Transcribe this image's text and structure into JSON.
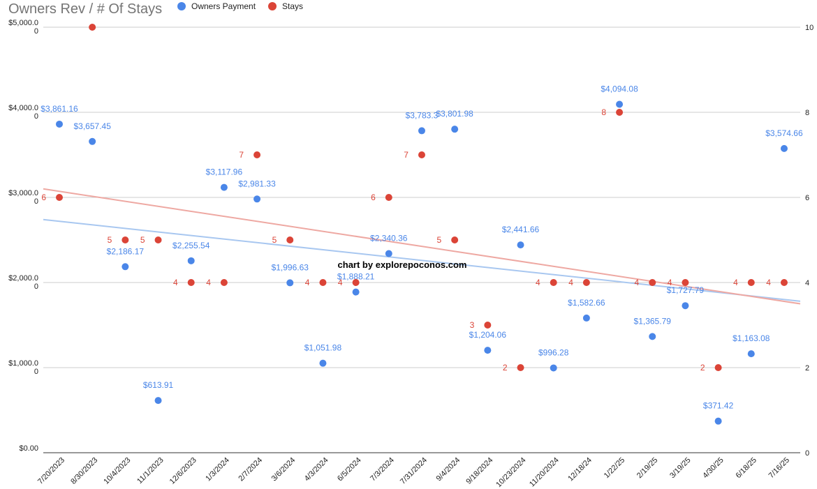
{
  "chart_data": {
    "type": "scatter",
    "title": "Owners Rev / # Of Stays",
    "watermark": "chart by explorepoconos.com",
    "categories": [
      "7/20/2023",
      "8/30/2023",
      "10/4/2023",
      "11/1/2023",
      "12/6/2023",
      "1/3/2024",
      "2/7/2024",
      "3/6/2024",
      "4/3/2024",
      "6/5/2024",
      "7/3/2024",
      "7/31/2024",
      "9/4/2024",
      "9/18/2024",
      "10/23/2024",
      "11/20/2024",
      "12/18/24",
      "1/22/25",
      "2/19/25",
      "3/19/25",
      "4/30/25",
      "6/18/25",
      "7/16/25"
    ],
    "series": [
      {
        "name": "Owners Payment",
        "axis": "left",
        "color": "#4a86e8",
        "values": [
          3861.16,
          3657.45,
          2186.17,
          613.91,
          2255.54,
          3117.96,
          2981.33,
          1996.63,
          1051.98,
          1888.21,
          2340.36,
          3783.3,
          3801.98,
          1204.06,
          null,
          996.28,
          1582.66,
          4094.08,
          1365.79,
          1727.79,
          371.42,
          1163.08,
          3574.66
        ],
        "labels": [
          "$3,861.16",
          "$3,657.45",
          "$2,186.17",
          "$613.91",
          "$2,255.54",
          "$3,117.96",
          "$2,981.33",
          "$1,996.63",
          "$1,051.98",
          "$1,888.21",
          "$2,340.36",
          "$3,783.3",
          "$3,801.98",
          "$1,204.06",
          "$2,441.66",
          "$996.28",
          "$1,582.66",
          "$4,094.08",
          "$1,365.79",
          "$1,727.79",
          "$371.42",
          "$1,163.08",
          "$3,574.66"
        ],
        "extra_point": {
          "category": "10/23/2024",
          "value": 2441.66
        },
        "trendline_color": "#a8c7f0"
      },
      {
        "name": "Stays",
        "axis": "right",
        "color": "#db4437",
        "values": [
          6,
          10,
          5,
          5,
          4,
          4,
          7,
          5,
          4,
          4,
          6,
          7,
          5,
          3,
          2,
          4,
          4,
          8,
          4,
          4,
          2,
          4,
          4
        ],
        "labels": [
          "6",
          "",
          "5",
          "5",
          "4",
          "4",
          "7",
          "5",
          "4",
          "4",
          "6",
          "7",
          "5",
          "3",
          "2",
          "4",
          "4",
          "8",
          "4",
          "4",
          "2",
          "4",
          "4"
        ],
        "trendline_color": "#eea8a2"
      }
    ],
    "y_left": {
      "ylim": [
        0,
        5000
      ],
      "ticks": [
        {
          "value": 0,
          "label": "$0.00",
          "label2": ""
        },
        {
          "value": 1000,
          "label": "$1,000.0",
          "label2": "0"
        },
        {
          "value": 2000,
          "label": "$2,000.0",
          "label2": "0"
        },
        {
          "value": 3000,
          "label": "$3,000.0",
          "label2": "0"
        },
        {
          "value": 4000,
          "label": "$4,000.0",
          "label2": "0"
        },
        {
          "value": 5000,
          "label": "$5,000.0",
          "label2": "0"
        }
      ]
    },
    "y_right": {
      "ylim": [
        0,
        10
      ],
      "ticks": [
        "0",
        "2",
        "4",
        "6",
        "8",
        "10"
      ]
    },
    "trendlines": {
      "payment": {
        "start": 2740,
        "end": 1780
      },
      "stays": {
        "start": 6.2,
        "end": 3.5
      }
    },
    "legend_position": "top"
  }
}
